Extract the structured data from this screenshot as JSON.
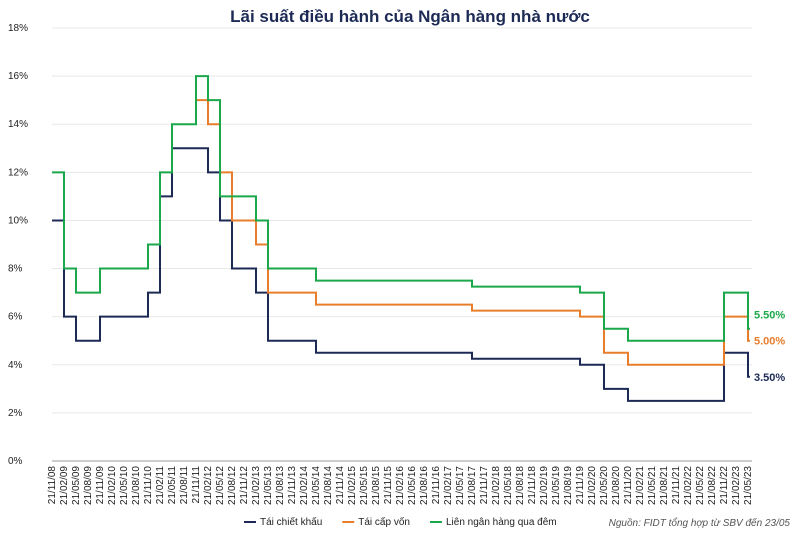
{
  "chart_data": {
    "type": "step-line",
    "title": "Lãi suất điều hành của Ngân hàng nhà nước",
    "source": "Nguồn: FIDT tổng hợp từ SBV đến 23/05",
    "categories": [
      "21/11/08",
      "21/02/09",
      "21/05/09",
      "21/08/09",
      "21/11/09",
      "21/02/10",
      "21/05/10",
      "21/08/10",
      "21/11/10",
      "21/02/11",
      "21/05/11",
      "21/08/11",
      "21/11/11",
      "21/02/12",
      "21/05/12",
      "21/08/12",
      "21/11/12",
      "21/02/13",
      "21/05/13",
      "21/08/13",
      "21/11/13",
      "21/02/14",
      "21/05/14",
      "21/08/14",
      "21/11/14",
      "21/02/15",
      "21/05/15",
      "21/08/15",
      "21/11/15",
      "21/02/16",
      "21/05/16",
      "21/08/16",
      "21/11/16",
      "21/02/17",
      "21/05/17",
      "21/08/17",
      "21/11/17",
      "21/02/18",
      "21/05/18",
      "21/08/18",
      "21/11/18",
      "21/02/19",
      "21/05/19",
      "21/08/19",
      "21/11/19",
      "21/02/20",
      "21/05/20",
      "21/08/20",
      "21/11/20",
      "21/02/21",
      "21/05/21",
      "21/08/21",
      "21/11/21",
      "21/02/22",
      "21/05/22",
      "21/08/22",
      "21/11/22",
      "21/02/23",
      "21/05/23"
    ],
    "ylim": [
      0,
      18
    ],
    "yticks": [
      {
        "value": 0,
        "label": "0%"
      },
      {
        "value": 2,
        "label": "2%"
      },
      {
        "value": 4,
        "label": "4%"
      },
      {
        "value": 6,
        "label": "6%"
      },
      {
        "value": 8,
        "label": "8%"
      },
      {
        "value": 10,
        "label": "10%"
      },
      {
        "value": 12,
        "label": "12%"
      },
      {
        "value": 14,
        "label": "14%"
      },
      {
        "value": 16,
        "label": "16%"
      },
      {
        "value": 18,
        "label": "18%"
      }
    ],
    "series": [
      {
        "name": "Tái chiết khấu",
        "color": "#1c2a55",
        "end_label": "3.50%",
        "values": [
          10,
          6,
          5,
          5,
          6,
          6,
          6,
          6,
          7,
          11,
          13,
          13,
          13,
          12,
          10,
          8,
          8,
          7,
          5,
          5,
          5,
          5,
          4.5,
          4.5,
          4.5,
          4.5,
          4.5,
          4.5,
          4.5,
          4.5,
          4.5,
          4.5,
          4.5,
          4.5,
          4.5,
          4.25,
          4.25,
          4.25,
          4.25,
          4.25,
          4.25,
          4.25,
          4.25,
          4.25,
          4,
          4,
          3,
          3,
          2.5,
          2.5,
          2.5,
          2.5,
          2.5,
          2.5,
          2.5,
          2.5,
          4.5,
          4.5,
          3.5
        ]
      },
      {
        "name": "Tái cấp vốn",
        "color": "#e87d2c",
        "end_label": "5.00%",
        "values": [
          null,
          null,
          null,
          null,
          null,
          null,
          null,
          null,
          null,
          null,
          null,
          null,
          15,
          14,
          12,
          10,
          10,
          9,
          7,
          7,
          7,
          7,
          6.5,
          6.5,
          6.5,
          6.5,
          6.5,
          6.5,
          6.5,
          6.5,
          6.5,
          6.5,
          6.5,
          6.5,
          6.5,
          6.25,
          6.25,
          6.25,
          6.25,
          6.25,
          6.25,
          6.25,
          6.25,
          6.25,
          6,
          6,
          4.5,
          4.5,
          4,
          4,
          4,
          4,
          4,
          4,
          4,
          4,
          6,
          6,
          5
        ]
      },
      {
        "name": "Liên ngân hàng qua đêm",
        "color": "#1aa84a",
        "end_label": "5.50%",
        "values": [
          12,
          8,
          7,
          7,
          8,
          8,
          8,
          8,
          9,
          12,
          14,
          14,
          16,
          15,
          11,
          11,
          11,
          10,
          8,
          8,
          8,
          8,
          7.5,
          7.5,
          7.5,
          7.5,
          7.5,
          7.5,
          7.5,
          7.5,
          7.5,
          7.5,
          7.5,
          7.5,
          7.5,
          7.25,
          7.25,
          7.25,
          7.25,
          7.25,
          7.25,
          7.25,
          7.25,
          7.25,
          7,
          7,
          5.5,
          5.5,
          5,
          5,
          5,
          5,
          5,
          5,
          5,
          5,
          7,
          7,
          5.5
        ]
      }
    ]
  }
}
